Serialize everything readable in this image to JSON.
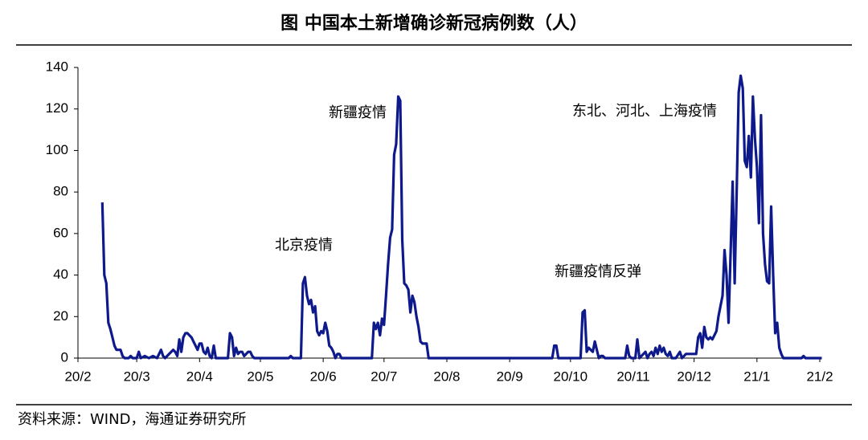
{
  "chart_data": {
    "type": "line",
    "title": "图  中国本土新增确诊新冠病例数（人）",
    "source": "资料来源：WIND，海通证券研究所",
    "annotations": [
      "新疆疫情",
      "东北、河北、上海疫情",
      "北京疫情",
      "新疆疫情反弹"
    ],
    "xlim": [
      0,
      366
    ],
    "xticks": [
      {
        "value": 0,
        "label": "20/2"
      },
      {
        "value": 29,
        "label": "20/3"
      },
      {
        "value": 60,
        "label": "20/4"
      },
      {
        "value": 90,
        "label": "20/5"
      },
      {
        "value": 121,
        "label": "20/6"
      },
      {
        "value": 151,
        "label": "20/7"
      },
      {
        "value": 182,
        "label": "20/8"
      },
      {
        "value": 213,
        "label": "20/9"
      },
      {
        "value": 243,
        "label": "20/10"
      },
      {
        "value": 274,
        "label": "20/11"
      },
      {
        "value": 304,
        "label": "20/12"
      },
      {
        "value": 335,
        "label": "21/1"
      },
      {
        "value": 366,
        "label": "21/2"
      }
    ],
    "ylim": [
      0,
      140
    ],
    "yticks": [
      0,
      20,
      40,
      60,
      80,
      100,
      120,
      140
    ],
    "series": [
      {
        "color": "#0e1a8c",
        "x": [
          12,
          13,
          14,
          15,
          16,
          17,
          18,
          19,
          20,
          21,
          22,
          23,
          25,
          26,
          27,
          29,
          30,
          31,
          33,
          35,
          37,
          39,
          41,
          42,
          43,
          45,
          47,
          48,
          49,
          50,
          51,
          52,
          53,
          54,
          55,
          56,
          57,
          58,
          59,
          60,
          61,
          62,
          63,
          64,
          65,
          66,
          67,
          68,
          74,
          75,
          76,
          77,
          78,
          79,
          80,
          81,
          82,
          83,
          84,
          85,
          86,
          87,
          104,
          105,
          106,
          110,
          111,
          112,
          113,
          114,
          115,
          116,
          117,
          118,
          119,
          120,
          121,
          122,
          123,
          124,
          125,
          126,
          127,
          128,
          129,
          130,
          145,
          146,
          147,
          148,
          149,
          150,
          151,
          152,
          153,
          154,
          155,
          156,
          157,
          158,
          159,
          160,
          161,
          162,
          163,
          164,
          165,
          166,
          167,
          168,
          169,
          170,
          171,
          172,
          173,
          234,
          235,
          236,
          237,
          248,
          249,
          250,
          251,
          252,
          253,
          254,
          255,
          256,
          257,
          258,
          259,
          260,
          270,
          271,
          272,
          273,
          275,
          276,
          277,
          278,
          280,
          281,
          282,
          283,
          284,
          285,
          286,
          287,
          288,
          289,
          290,
          291,
          292,
          293,
          295,
          297,
          298,
          300,
          305,
          306,
          307,
          308,
          309,
          310,
          311,
          312,
          313,
          315,
          316,
          317,
          318,
          319,
          320,
          321,
          322,
          323,
          324,
          325,
          326,
          327,
          328,
          329,
          330,
          331,
          332,
          333,
          334,
          335,
          336,
          337,
          338,
          339,
          340,
          341,
          342,
          343,
          344,
          345,
          346,
          347,
          348,
          357,
          358,
          359,
          367
        ],
        "values": [
          75,
          40,
          36,
          17,
          14,
          10,
          6,
          4,
          4,
          4,
          1,
          0,
          0,
          1,
          0,
          0,
          3,
          0,
          1,
          0,
          1,
          0,
          4,
          1,
          0,
          2,
          4,
          3,
          1,
          9,
          3,
          10,
          12,
          12,
          11,
          10,
          8,
          6,
          4,
          7,
          7,
          3,
          2,
          5,
          1,
          0,
          6,
          0,
          0,
          12,
          10,
          1,
          5,
          2,
          3,
          3,
          1,
          2,
          3,
          3,
          1,
          0,
          0,
          1,
          0,
          0,
          36,
          39,
          30,
          26,
          28,
          22,
          25,
          13,
          11,
          13,
          12,
          17,
          13,
          6,
          5,
          3,
          0,
          2,
          2,
          0,
          0,
          17,
          14,
          17,
          11,
          19,
          16,
          30,
          45,
          58,
          62,
          98,
          103,
          126,
          124,
          57,
          36,
          35,
          33,
          22,
          30,
          27,
          20,
          15,
          8,
          7,
          7,
          7,
          0,
          0,
          6,
          6,
          0,
          0,
          22,
          23,
          3,
          5,
          4,
          3,
          8,
          4,
          0,
          1,
          1,
          0,
          0,
          6,
          1,
          0,
          0,
          9,
          0,
          1,
          3,
          0,
          2,
          3,
          1,
          5,
          2,
          6,
          3,
          5,
          2,
          1,
          3,
          0,
          0,
          3,
          0,
          2,
          2,
          10,
          12,
          5,
          15,
          10,
          9,
          10,
          9,
          13,
          20,
          25,
          30,
          52,
          40,
          17,
          50,
          85,
          36,
          80,
          128,
          136,
          130,
          95,
          92,
          107,
          87,
          126,
          106,
          92,
          65,
          117,
          60,
          45,
          37,
          36,
          73,
          40,
          12,
          17,
          5,
          2,
          0,
          0,
          1,
          0,
          0
        ]
      }
    ]
  }
}
